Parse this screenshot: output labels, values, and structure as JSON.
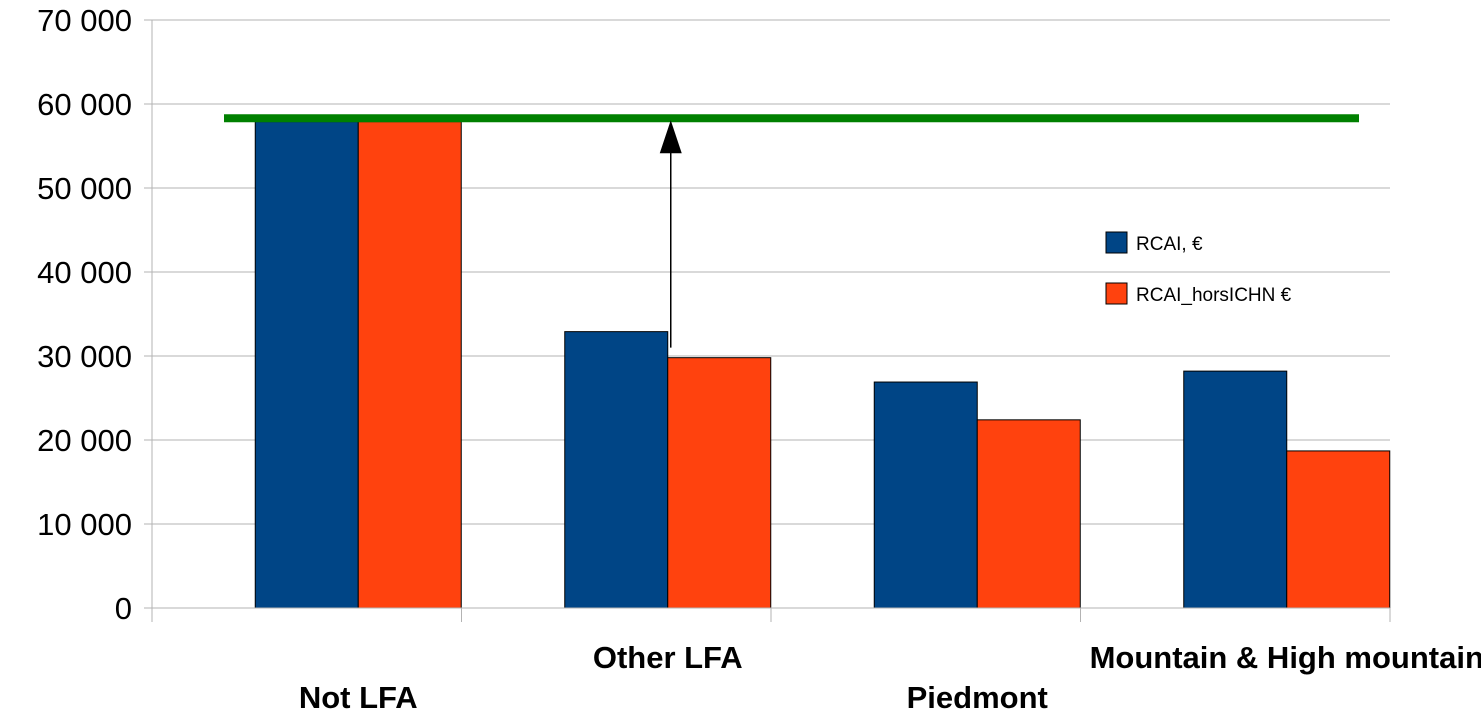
{
  "chart_data": {
    "type": "bar",
    "categories": [
      "Not LFA",
      "Other LFA",
      "Piedmont",
      "Mountain & High mountain"
    ],
    "series": [
      {
        "name": "RCAI, €",
        "values": [
          57900,
          32900,
          26900,
          28200
        ],
        "color": "#004586"
      },
      {
        "name": "RCAI_horsICHN €",
        "values": [
          57900,
          29800,
          22400,
          18700
        ],
        "color": "#ff420e"
      }
    ],
    "ylim": [
      0,
      70000
    ],
    "yticks": [
      0,
      10000,
      20000,
      30000,
      40000,
      50000,
      60000,
      70000
    ],
    "ytick_labels": [
      "0",
      "10 000",
      "20 000",
      "30 000",
      "40 000",
      "50 000",
      "60 000",
      "70 000"
    ],
    "grid": true,
    "legend_position": "right",
    "reference_line": {
      "value": 58300,
      "color": "#008000"
    },
    "arrow": {
      "category_index": 1,
      "from": 31000,
      "to": 58300
    },
    "colors": {
      "grid": "#b3b3b3",
      "bar_stroke": "#000000"
    }
  }
}
